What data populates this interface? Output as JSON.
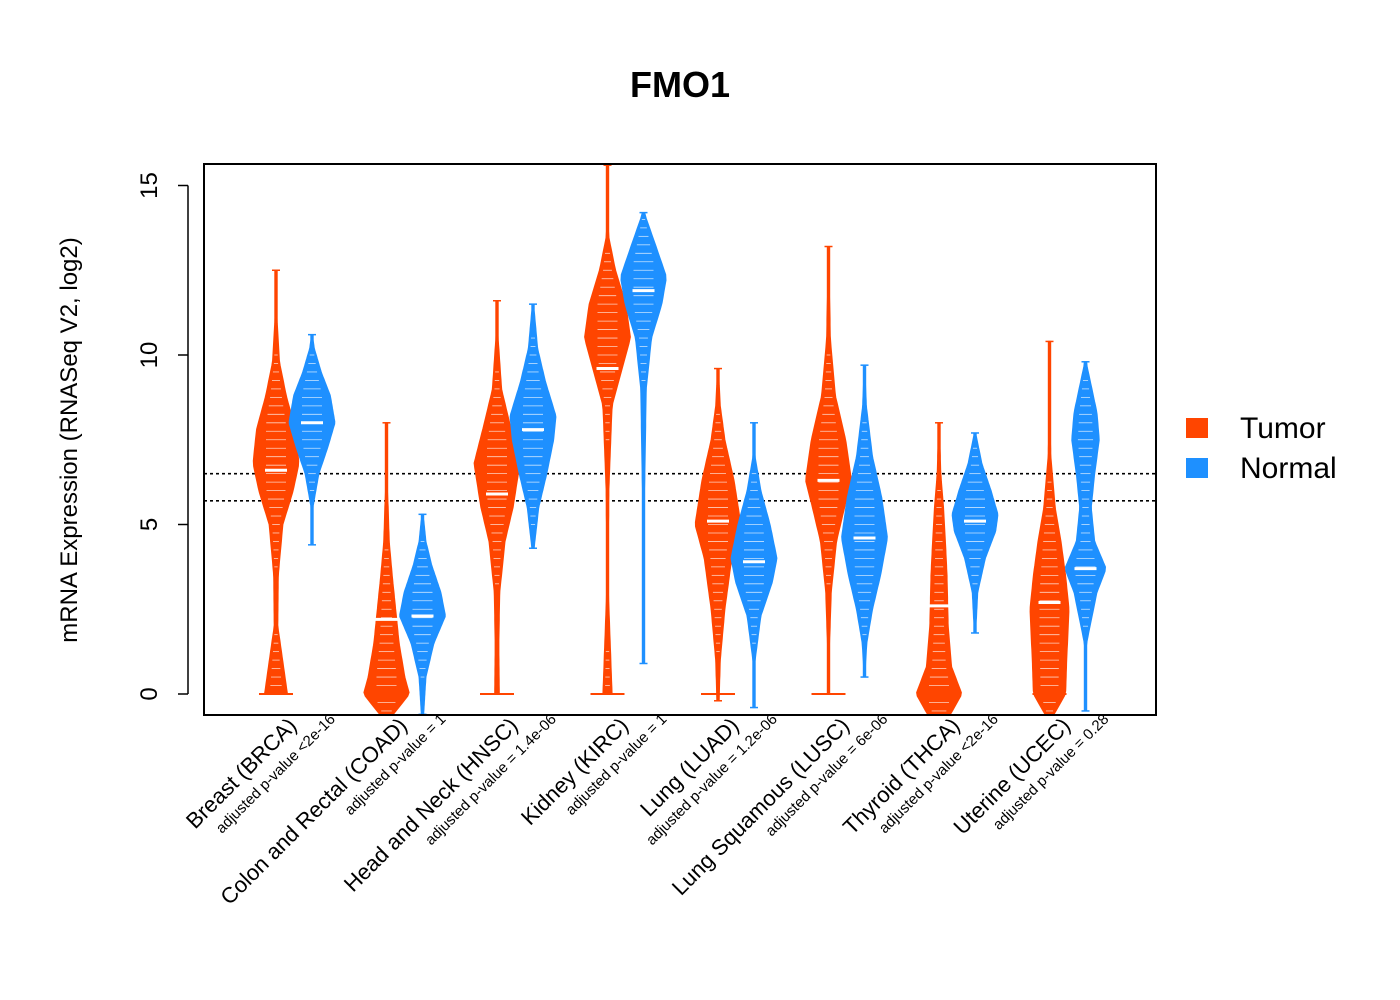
{
  "chart_data": {
    "type": "violin",
    "title": "FMO1",
    "xlabel": "",
    "ylabel": "mRNA Expression (RNASeq V2, log2)",
    "ylim": [
      -0.6,
      15.6
    ],
    "yticks": [
      0,
      5,
      10,
      15
    ],
    "reference_lines": [
      5.7,
      6.5
    ],
    "legend": [
      {
        "name": "Tumor",
        "color": "#ff4500"
      },
      {
        "name": "Normal",
        "color": "#1e90ff"
      }
    ],
    "groups": [
      {
        "name": "Breast (BRCA)",
        "pvalue": "adjusted p-value <2e-16",
        "tumor": {
          "median": 6.6,
          "min": 0,
          "max": 12.5,
          "profile": [
            [
              0,
              0.5
            ],
            [
              2,
              0.08
            ],
            [
              3.5,
              0.1
            ],
            [
              5,
              0.3
            ],
            [
              6,
              0.75
            ],
            [
              6.8,
              1
            ],
            [
              7.8,
              0.85
            ],
            [
              8.8,
              0.45
            ],
            [
              9.8,
              0.15
            ],
            [
              11,
              0.05
            ],
            [
              12.5,
              0.02
            ]
          ]
        },
        "normal": {
          "median": 8.0,
          "min": 4.4,
          "max": 10.6,
          "profile": [
            [
              4.4,
              0.02
            ],
            [
              5.5,
              0.04
            ],
            [
              6.5,
              0.3
            ],
            [
              7.3,
              0.7
            ],
            [
              8,
              1
            ],
            [
              8.8,
              0.8
            ],
            [
              9.5,
              0.4
            ],
            [
              10.2,
              0.1
            ],
            [
              10.6,
              0.02
            ]
          ]
        }
      },
      {
        "name": "Colon and Rectal (COAD)",
        "pvalue": "adjusted p-value = 1",
        "tumor": {
          "median": 2.2,
          "min": -0.6,
          "max": 8.0,
          "profile": [
            [
              -0.6,
              0.3
            ],
            [
              0,
              1
            ],
            [
              0.5,
              0.8
            ],
            [
              1.5,
              0.55
            ],
            [
              2.5,
              0.4
            ],
            [
              3.5,
              0.25
            ],
            [
              4.5,
              0.12
            ],
            [
              6,
              0.05
            ],
            [
              7.5,
              0.03
            ],
            [
              8,
              0.02
            ]
          ]
        },
        "normal": {
          "median": 2.3,
          "min": -0.6,
          "max": 5.3,
          "profile": [
            [
              -0.6,
              0.05
            ],
            [
              0.5,
              0.15
            ],
            [
              1.5,
              0.5
            ],
            [
              2.3,
              1
            ],
            [
              3,
              0.8
            ],
            [
              3.8,
              0.4
            ],
            [
              4.5,
              0.15
            ],
            [
              5.3,
              0.03
            ]
          ]
        }
      },
      {
        "name": "Head and Neck (HNSC)",
        "pvalue": "adjusted p-value = 1.4e-06",
        "tumor": {
          "median": 5.9,
          "min": 0,
          "max": 11.6,
          "profile": [
            [
              0,
              0.1
            ],
            [
              1.5,
              0.08
            ],
            [
              3,
              0.12
            ],
            [
              4.5,
              0.35
            ],
            [
              5.5,
              0.7
            ],
            [
              6.8,
              1
            ],
            [
              8,
              0.55
            ],
            [
              9,
              0.2
            ],
            [
              10.5,
              0.05
            ],
            [
              11.6,
              0.02
            ]
          ]
        },
        "normal": {
          "median": 7.8,
          "min": 4.3,
          "max": 11.5,
          "profile": [
            [
              4.3,
              0.05
            ],
            [
              5.5,
              0.25
            ],
            [
              6.5,
              0.6
            ],
            [
              7.5,
              0.9
            ],
            [
              8.2,
              1
            ],
            [
              9.2,
              0.55
            ],
            [
              10.2,
              0.2
            ],
            [
              11.5,
              0.03
            ]
          ]
        }
      },
      {
        "name": "Kidney (KIRC)",
        "pvalue": "adjusted p-value = 1",
        "tumor": {
          "median": 9.6,
          "min": 0,
          "max": 15.6,
          "profile": [
            [
              0,
              0.2
            ],
            [
              3,
              0.04
            ],
            [
              6,
              0.06
            ],
            [
              8.5,
              0.2
            ],
            [
              9.5,
              0.6
            ],
            [
              10.5,
              1
            ],
            [
              11.5,
              0.8
            ],
            [
              12.5,
              0.35
            ],
            [
              13.5,
              0.05
            ],
            [
              15.6,
              0.02
            ]
          ]
        },
        "normal": {
          "median": 11.9,
          "min": 0.9,
          "max": 14.2,
          "profile": [
            [
              0.9,
              0.02
            ],
            [
              3,
              0.03
            ],
            [
              6,
              0.05
            ],
            [
              9,
              0.12
            ],
            [
              10.5,
              0.35
            ],
            [
              11.5,
              0.8
            ],
            [
              12.3,
              1
            ],
            [
              13.2,
              0.55
            ],
            [
              14.2,
              0.03
            ]
          ]
        }
      },
      {
        "name": "Lung (LUAD)",
        "pvalue": "adjusted p-value = 1.2e-06",
        "tumor": {
          "median": 5.1,
          "min": -0.2,
          "max": 9.6,
          "profile": [
            [
              -0.2,
              0.05
            ],
            [
              1,
              0.1
            ],
            [
              2.5,
              0.3
            ],
            [
              4,
              0.6
            ],
            [
              5,
              1
            ],
            [
              6.3,
              0.7
            ],
            [
              7.5,
              0.3
            ],
            [
              8.5,
              0.1
            ],
            [
              9.6,
              0.02
            ]
          ]
        },
        "normal": {
          "median": 3.9,
          "min": -0.4,
          "max": 8.0,
          "profile": [
            [
              -0.4,
              0.02
            ],
            [
              1,
              0.05
            ],
            [
              2.3,
              0.3
            ],
            [
              3.3,
              0.8
            ],
            [
              4,
              1
            ],
            [
              5,
              0.7
            ],
            [
              6,
              0.3
            ],
            [
              7,
              0.05
            ],
            [
              8,
              0.02
            ]
          ]
        }
      },
      {
        "name": "Lung Squamous (LUSC)",
        "pvalue": "adjusted p-value = 6e-06",
        "tumor": {
          "median": 6.3,
          "min": 0,
          "max": 13.2,
          "profile": [
            [
              0,
              0.05
            ],
            [
              1.5,
              0.05
            ],
            [
              3,
              0.12
            ],
            [
              4.5,
              0.35
            ],
            [
              5.5,
              0.7
            ],
            [
              6.3,
              1
            ],
            [
              7.5,
              0.75
            ],
            [
              8.8,
              0.3
            ],
            [
              10.5,
              0.08
            ],
            [
              13.2,
              0.02
            ]
          ]
        },
        "normal": {
          "median": 4.6,
          "min": 0.5,
          "max": 9.7,
          "profile": [
            [
              0.5,
              0.02
            ],
            [
              1.5,
              0.1
            ],
            [
              2.5,
              0.35
            ],
            [
              3.5,
              0.7
            ],
            [
              4.6,
              1
            ],
            [
              5.8,
              0.75
            ],
            [
              7,
              0.35
            ],
            [
              8.5,
              0.08
            ],
            [
              9.7,
              0.02
            ]
          ]
        }
      },
      {
        "name": "Thyroid (THCA)",
        "pvalue": "adjusted p-value <2e-16",
        "tumor": {
          "median": 2.6,
          "min": -0.6,
          "max": 8.0,
          "profile": [
            [
              -0.6,
              0.5
            ],
            [
              0,
              1
            ],
            [
              0.8,
              0.55
            ],
            [
              2,
              0.4
            ],
            [
              3.5,
              0.35
            ],
            [
              4.5,
              0.28
            ],
            [
              5.5,
              0.2
            ],
            [
              6.5,
              0.08
            ],
            [
              8,
              0.02
            ]
          ]
        },
        "normal": {
          "median": 5.1,
          "min": 1.8,
          "max": 7.7,
          "profile": [
            [
              1.8,
              0.03
            ],
            [
              3,
              0.12
            ],
            [
              4,
              0.45
            ],
            [
              4.8,
              0.9
            ],
            [
              5.3,
              1
            ],
            [
              6,
              0.7
            ],
            [
              6.8,
              0.3
            ],
            [
              7.7,
              0.03
            ]
          ]
        }
      },
      {
        "name": "Uterine (UCEC)",
        "pvalue": "adjusted p-value = 0.28",
        "tumor": {
          "median": 2.7,
          "min": -0.6,
          "max": 10.4,
          "profile": [
            [
              -0.6,
              0.2
            ],
            [
              0,
              0.7
            ],
            [
              1,
              0.75
            ],
            [
              2.5,
              0.85
            ],
            [
              3.5,
              0.7
            ],
            [
              4.5,
              0.5
            ],
            [
              5.5,
              0.25
            ],
            [
              7,
              0.06
            ],
            [
              8.5,
              0.03
            ],
            [
              10.4,
              0.02
            ]
          ]
        },
        "normal": {
          "median": 3.7,
          "min": -0.5,
          "max": 9.8,
          "profile": [
            [
              -0.5,
              0.02
            ],
            [
              1.5,
              0.05
            ],
            [
              3,
              0.5
            ],
            [
              3.7,
              0.9
            ],
            [
              4.5,
              0.4
            ],
            [
              5.5,
              0.25
            ],
            [
              6.5,
              0.4
            ],
            [
              7.5,
              0.6
            ],
            [
              8.3,
              0.5
            ],
            [
              9.8,
              0.03
            ]
          ]
        }
      }
    ]
  }
}
